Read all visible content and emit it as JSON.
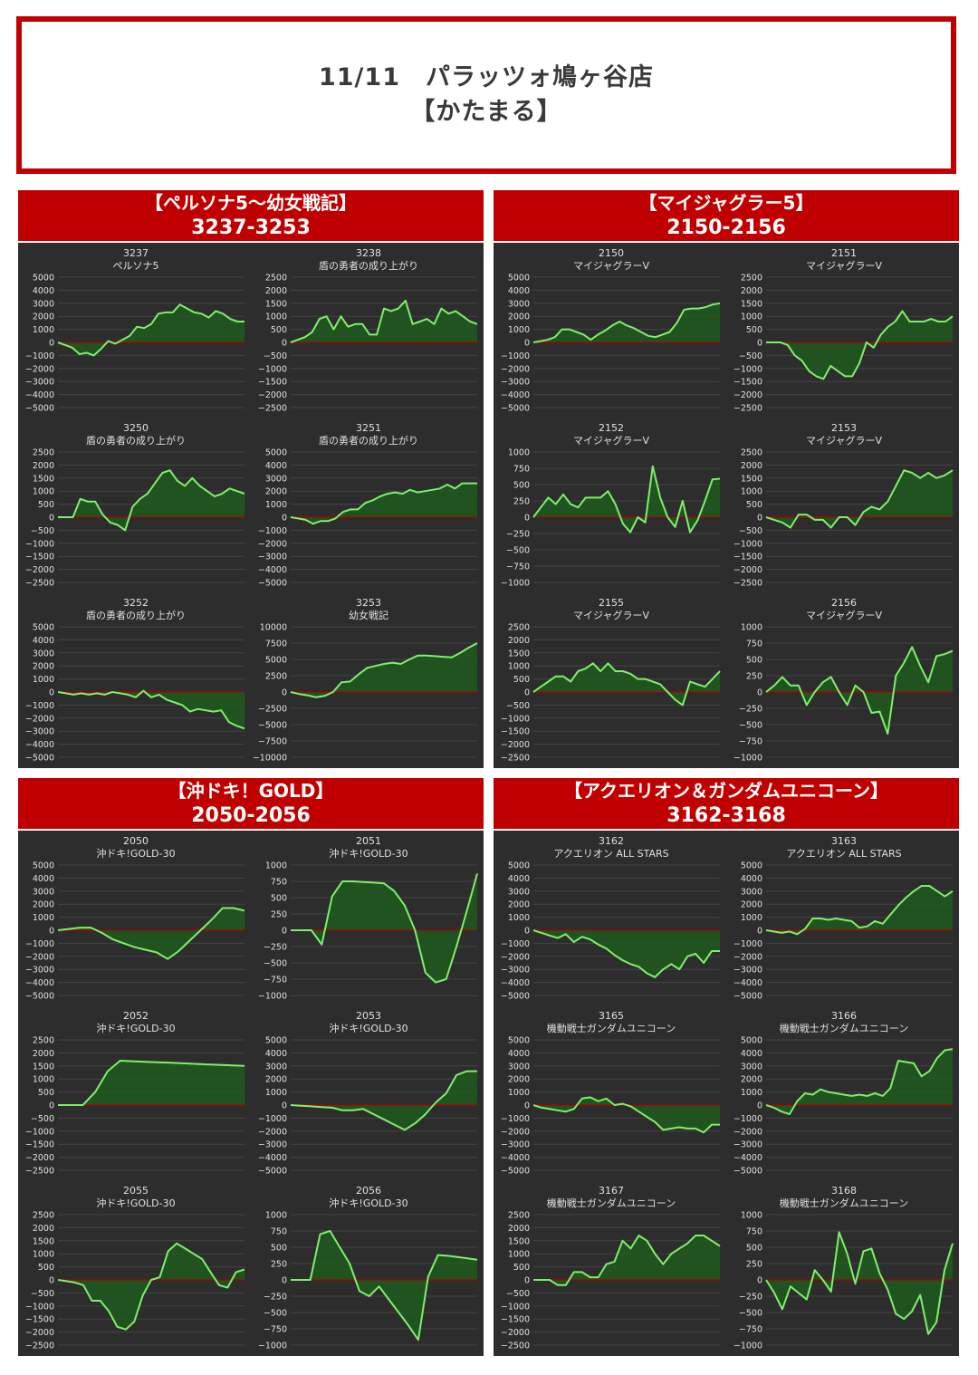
{
  "header": {
    "line1": "11/11　パラッツォ鳩ヶ谷店",
    "line2": "【かたまる】"
  },
  "colors": {
    "accent": "#c00000",
    "chart_bg": "#2d2d2d",
    "line": "#7ef06a",
    "fill": "#1f5a1f",
    "zero_line": "#b00000"
  },
  "panels": [
    {
      "name": "【ペルソナ5～幼女戦記】",
      "range": "3237-3253"
    },
    {
      "name": "【マイジャグラー5】",
      "range": "2150-2156"
    },
    {
      "name": "【沖ドキ！GOLD】",
      "range": "2050-2056"
    },
    {
      "name": "【アクエリオン＆ガンダムユニコーン】",
      "range": "3162-3168"
    }
  ],
  "chart_data": [
    {
      "type": "line",
      "title": "3237",
      "subtitle": "ペルソナ5",
      "ylim": [
        -5000,
        5000
      ],
      "yticks": [
        5000,
        4000,
        3000,
        2000,
        1000,
        0,
        -1000,
        -2000,
        -3000,
        -4000,
        -5000
      ],
      "values": [
        0,
        -200,
        -400,
        -900,
        -800,
        -1000,
        -500,
        100,
        -100,
        200,
        500,
        1200,
        1100,
        1400,
        2200,
        2300,
        2300,
        2900,
        2600,
        2300,
        2200,
        1900,
        2400,
        2200,
        1800,
        1600,
        1600
      ]
    },
    {
      "type": "line",
      "title": "3238",
      "subtitle": "盾の勇者の成り上がり",
      "ylim": [
        -2500,
        2500
      ],
      "yticks": [
        2500,
        2000,
        1500,
        1000,
        500,
        0,
        -500,
        -1000,
        -1500,
        -2000,
        -2500
      ],
      "values": [
        0,
        100,
        200,
        400,
        900,
        1000,
        500,
        1000,
        600,
        700,
        700,
        300,
        300,
        1300,
        1200,
        1300,
        1600,
        700,
        800,
        900,
        700,
        1300,
        1100,
        1200,
        1000,
        800,
        700
      ]
    },
    {
      "type": "line",
      "title": "2150",
      "subtitle": "マイジャグラーV",
      "ylim": [
        -5000,
        5000
      ],
      "yticks": [
        5000,
        4000,
        3000,
        2000,
        1000,
        0,
        -1000,
        -2000,
        -3000,
        -4000,
        -5000
      ],
      "values": [
        0,
        100,
        200,
        400,
        1000,
        1000,
        800,
        600,
        200,
        600,
        900,
        1300,
        1600,
        1300,
        1100,
        800,
        500,
        400,
        600,
        800,
        1500,
        2500,
        2600,
        2600,
        2700,
        2900,
        3000
      ]
    },
    {
      "type": "line",
      "title": "2151",
      "subtitle": "マイジャグラーV",
      "ylim": [
        -2500,
        2500
      ],
      "yticks": [
        2500,
        2000,
        1500,
        1000,
        500,
        0,
        -500,
        -1000,
        -1500,
        -2000,
        -2500
      ],
      "values": [
        0,
        0,
        0,
        -100,
        -500,
        -700,
        -1100,
        -1300,
        -1400,
        -900,
        -1100,
        -1300,
        -1300,
        -800,
        0,
        -200,
        300,
        600,
        800,
        1200,
        800,
        800,
        800,
        900,
        800,
        800,
        1000
      ]
    },
    {
      "type": "line",
      "title": "3250",
      "subtitle": "盾の勇者の成り上がり",
      "ylim": [
        -2500,
        2500
      ],
      "yticks": [
        2500,
        2000,
        1500,
        1000,
        500,
        0,
        -500,
        -1000,
        -1500,
        -2000,
        -2500
      ],
      "values": [
        0,
        0,
        0,
        700,
        600,
        600,
        100,
        -200,
        -300,
        -500,
        400,
        700,
        900,
        1300,
        1700,
        1800,
        1400,
        1200,
        1500,
        1200,
        1000,
        800,
        900,
        1100,
        1000,
        900
      ]
    },
    {
      "type": "line",
      "title": "3251",
      "subtitle": "盾の勇者の成り上がり",
      "ylim": [
        -5000,
        5000
      ],
      "yticks": [
        5000,
        4000,
        3000,
        2000,
        1000,
        0,
        -1000,
        -2000,
        -3000,
        -4000,
        -5000
      ],
      "values": [
        0,
        -100,
        -200,
        -500,
        -300,
        -300,
        -100,
        400,
        600,
        600,
        1100,
        1300,
        1600,
        1800,
        1900,
        1800,
        2100,
        1900,
        2000,
        2100,
        2200,
        2500,
        2200,
        2600,
        2600,
        2600
      ]
    },
    {
      "type": "line",
      "title": "2152",
      "subtitle": "マイジャグラーV",
      "ylim": [
        -1000,
        1000
      ],
      "yticks": [
        1000,
        750,
        500,
        250,
        0,
        -250,
        -500,
        -750,
        -1000
      ],
      "values": [
        0,
        150,
        300,
        200,
        350,
        200,
        150,
        300,
        300,
        300,
        400,
        200,
        -100,
        -230,
        0,
        -80,
        780,
        300,
        0,
        -150,
        250,
        -230,
        -50,
        250,
        580,
        590
      ]
    },
    {
      "type": "line",
      "title": "2153",
      "subtitle": "マイジャグラーV",
      "ylim": [
        -2500,
        2500
      ],
      "yticks": [
        2500,
        2000,
        1500,
        1000,
        500,
        0,
        -500,
        -1000,
        -1500,
        -2000,
        -2500
      ],
      "values": [
        0,
        -100,
        -200,
        -400,
        100,
        100,
        -100,
        -100,
        -400,
        0,
        0,
        -300,
        200,
        400,
        300,
        600,
        1200,
        1800,
        1700,
        1500,
        1700,
        1500,
        1600,
        1800
      ]
    },
    {
      "type": "line",
      "title": "3252",
      "subtitle": "盾の勇者の成り上がり",
      "ylim": [
        -5000,
        5000
      ],
      "yticks": [
        5000,
        4000,
        3000,
        2000,
        1000,
        0,
        -1000,
        -2000,
        -3000,
        -4000,
        -5000
      ],
      "values": [
        0,
        -100,
        -200,
        -100,
        -200,
        -100,
        -200,
        0,
        -100,
        -200,
        -400,
        100,
        -400,
        -200,
        -600,
        -800,
        -1000,
        -1500,
        -1300,
        -1400,
        -1500,
        -1400,
        -2300,
        -2600,
        -2800
      ]
    },
    {
      "type": "line",
      "title": "3253",
      "subtitle": "幼女戦記",
      "ylim": [
        -10000,
        10000
      ],
      "yticks": [
        10000,
        7500,
        5000,
        2500,
        0,
        -2500,
        -5000,
        -7500,
        -10000
      ],
      "values": [
        0,
        -300,
        -500,
        -800,
        -600,
        0,
        1500,
        1600,
        2700,
        3700,
        4000,
        4300,
        4500,
        4300,
        5000,
        5600,
        5600,
        5500,
        5400,
        5300,
        6000,
        6800,
        7500
      ]
    },
    {
      "type": "line",
      "title": "2155",
      "subtitle": "マイジャグラーV",
      "ylim": [
        -2500,
        2500
      ],
      "yticks": [
        2500,
        2000,
        1500,
        1000,
        500,
        0,
        -500,
        -1000,
        -1500,
        -2000,
        -2500
      ],
      "values": [
        0,
        200,
        400,
        600,
        600,
        400,
        800,
        900,
        1100,
        800,
        1100,
        800,
        800,
        700,
        500,
        500,
        400,
        300,
        0,
        -300,
        -500,
        400,
        300,
        200,
        500,
        800
      ]
    },
    {
      "type": "line",
      "title": "2156",
      "subtitle": "マイジャグラーV",
      "ylim": [
        -1000,
        1000
      ],
      "yticks": [
        1000,
        750,
        500,
        250,
        0,
        -250,
        -500,
        -750,
        -1000
      ],
      "values": [
        0,
        100,
        230,
        100,
        100,
        -200,
        0,
        150,
        230,
        0,
        -200,
        100,
        0,
        -320,
        -300,
        -640,
        250,
        450,
        690,
        400,
        150,
        550,
        580,
        630
      ]
    },
    {
      "type": "line",
      "title": "2050",
      "subtitle": "沖ドキ!GOLD‐30",
      "ylim": [
        -5000,
        5000
      ],
      "yticks": [
        5000,
        4000,
        3000,
        2000,
        1000,
        0,
        -1000,
        -2000,
        -3000,
        -4000,
        -5000
      ],
      "values": [
        0,
        100,
        200,
        200,
        -200,
        -700,
        -1000,
        -1300,
        -1500,
        -1700,
        -2200,
        -1600,
        -800,
        0,
        800,
        1700,
        1700,
        1500
      ]
    },
    {
      "type": "line",
      "title": "2051",
      "subtitle": "沖ドキ!GOLD‐30",
      "ylim": [
        -1000,
        1000
      ],
      "yticks": [
        1000,
        750,
        500,
        250,
        0,
        -250,
        -500,
        -750,
        -1000
      ],
      "values": [
        0,
        0,
        0,
        -220,
        520,
        750,
        750,
        740,
        730,
        720,
        600,
        380,
        0,
        -650,
        -800,
        -750,
        -250,
        300,
        870
      ]
    },
    {
      "type": "line",
      "title": "2052",
      "subtitle": "沖ドキ!GOLD‐30",
      "ylim": [
        -2500,
        2500
      ],
      "yticks": [
        2500,
        2000,
        1500,
        1000,
        500,
        0,
        -500,
        -1000,
        -1500,
        -2000,
        -2500
      ],
      "values": [
        0,
        0,
        0,
        500,
        1300,
        1700,
        1680,
        1660,
        1640,
        1620,
        1600,
        1580,
        1560,
        1540,
        1520,
        1500
      ]
    },
    {
      "type": "line",
      "title": "2053",
      "subtitle": "沖ドキ!GOLD‐30",
      "ylim": [
        -5000,
        5000
      ],
      "yticks": [
        5000,
        4000,
        3000,
        2000,
        1000,
        0,
        -1000,
        -2000,
        -3000,
        -4000,
        -5000
      ],
      "values": [
        0,
        -50,
        -100,
        -150,
        -200,
        -400,
        -400,
        -300,
        -700,
        -1100,
        -1500,
        -1900,
        -1400,
        -700,
        200,
        900,
        2300,
        2600,
        2600
      ]
    },
    {
      "type": "line",
      "title": "2055",
      "subtitle": "沖ドキ!GOLD‐30",
      "ylim": [
        -2500,
        2500
      ],
      "yticks": [
        2500,
        2000,
        1500,
        1000,
        500,
        0,
        -500,
        -1000,
        -1500,
        -2000,
        -2500
      ],
      "values": [
        0,
        -50,
        -100,
        -200,
        -800,
        -800,
        -1200,
        -1800,
        -1900,
        -1600,
        -600,
        0,
        100,
        1100,
        1400,
        1200,
        1000,
        800,
        300,
        -200,
        -300,
        300,
        400
      ]
    },
    {
      "type": "line",
      "title": "2056",
      "subtitle": "沖ドキ!GOLD‐30",
      "ylim": [
        -1000,
        1000
      ],
      "yticks": [
        1000,
        750,
        500,
        250,
        0,
        -250,
        -500,
        -750,
        -1000
      ],
      "values": [
        0,
        0,
        0,
        700,
        750,
        500,
        250,
        -170,
        -250,
        -100,
        -300,
        -500,
        -700,
        -920,
        50,
        380,
        370,
        350,
        330,
        310
      ]
    },
    {
      "type": "line",
      "title": "3162",
      "subtitle": "アクエリオン ALL STARS",
      "ylim": [
        -5000,
        5000
      ],
      "yticks": [
        5000,
        4000,
        3000,
        2000,
        1000,
        0,
        -1000,
        -2000,
        -3000,
        -4000,
        -5000
      ],
      "values": [
        0,
        -200,
        -400,
        -600,
        -300,
        -900,
        -500,
        -700,
        -1100,
        -1400,
        -1900,
        -2300,
        -2600,
        -2800,
        -3300,
        -3600,
        -3000,
        -2600,
        -3000,
        -2000,
        -1800,
        -2500,
        -1600,
        -1600
      ]
    },
    {
      "type": "line",
      "title": "3163",
      "subtitle": "アクエリオン ALL STARS",
      "ylim": [
        -5000,
        5000
      ],
      "yticks": [
        5000,
        4000,
        3000,
        2000,
        1000,
        0,
        -1000,
        -2000,
        -3000,
        -4000,
        -5000
      ],
      "values": [
        0,
        -100,
        -200,
        -100,
        -300,
        100,
        900,
        900,
        800,
        900,
        800,
        700,
        200,
        300,
        700,
        500,
        1200,
        1900,
        2500,
        3000,
        3400,
        3400,
        3000,
        2600,
        3000
      ]
    },
    {
      "type": "line",
      "title": "3165",
      "subtitle": "機動戦士ガンダムユニコーン",
      "ylim": [
        -5000,
        5000
      ],
      "yticks": [
        5000,
        4000,
        3000,
        2000,
        1000,
        0,
        -1000,
        -2000,
        -3000,
        -4000,
        -5000
      ],
      "values": [
        0,
        -200,
        -300,
        -400,
        -500,
        -300,
        500,
        600,
        300,
        500,
        0,
        100,
        -100,
        -500,
        -900,
        -1300,
        -1900,
        -1800,
        -1700,
        -1800,
        -1800,
        -2100,
        -1500,
        -1500
      ]
    },
    {
      "type": "line",
      "title": "3166",
      "subtitle": "機動戦士ガンダムユニコーン",
      "ylim": [
        -5000,
        5000
      ],
      "yticks": [
        5000,
        4000,
        3000,
        2000,
        1000,
        0,
        -1000,
        -2000,
        -3000,
        -4000,
        -5000
      ],
      "values": [
        0,
        -200,
        -500,
        -700,
        300,
        900,
        800,
        1200,
        1000,
        900,
        800,
        700,
        800,
        700,
        900,
        700,
        1300,
        3400,
        3300,
        3200,
        2200,
        2600,
        3600,
        4200,
        4300
      ]
    },
    {
      "type": "line",
      "title": "3167",
      "subtitle": "機動戦士ガンダムユニコーン",
      "ylim": [
        -2500,
        2500
      ],
      "yticks": [
        2500,
        2000,
        1500,
        1000,
        500,
        0,
        -500,
        -1000,
        -1500,
        -2000,
        -2500
      ],
      "values": [
        0,
        0,
        0,
        -200,
        -200,
        300,
        300,
        100,
        100,
        600,
        700,
        1500,
        1200,
        1700,
        1500,
        1000,
        600,
        1000,
        1200,
        1400,
        1700,
        1700,
        1500,
        1300
      ]
    },
    {
      "type": "line",
      "title": "3168",
      "subtitle": "機動戦士ガンダムユニコーン",
      "ylim": [
        -1000,
        1000
      ],
      "yticks": [
        1000,
        750,
        500,
        250,
        0,
        -250,
        -500,
        -750,
        -1000
      ],
      "values": [
        0,
        -200,
        -450,
        -100,
        -200,
        -300,
        150,
        0,
        -180,
        730,
        400,
        -60,
        440,
        480,
        100,
        -150,
        -520,
        -600,
        -480,
        -230,
        -830,
        -650,
        150,
        560
      ]
    }
  ]
}
